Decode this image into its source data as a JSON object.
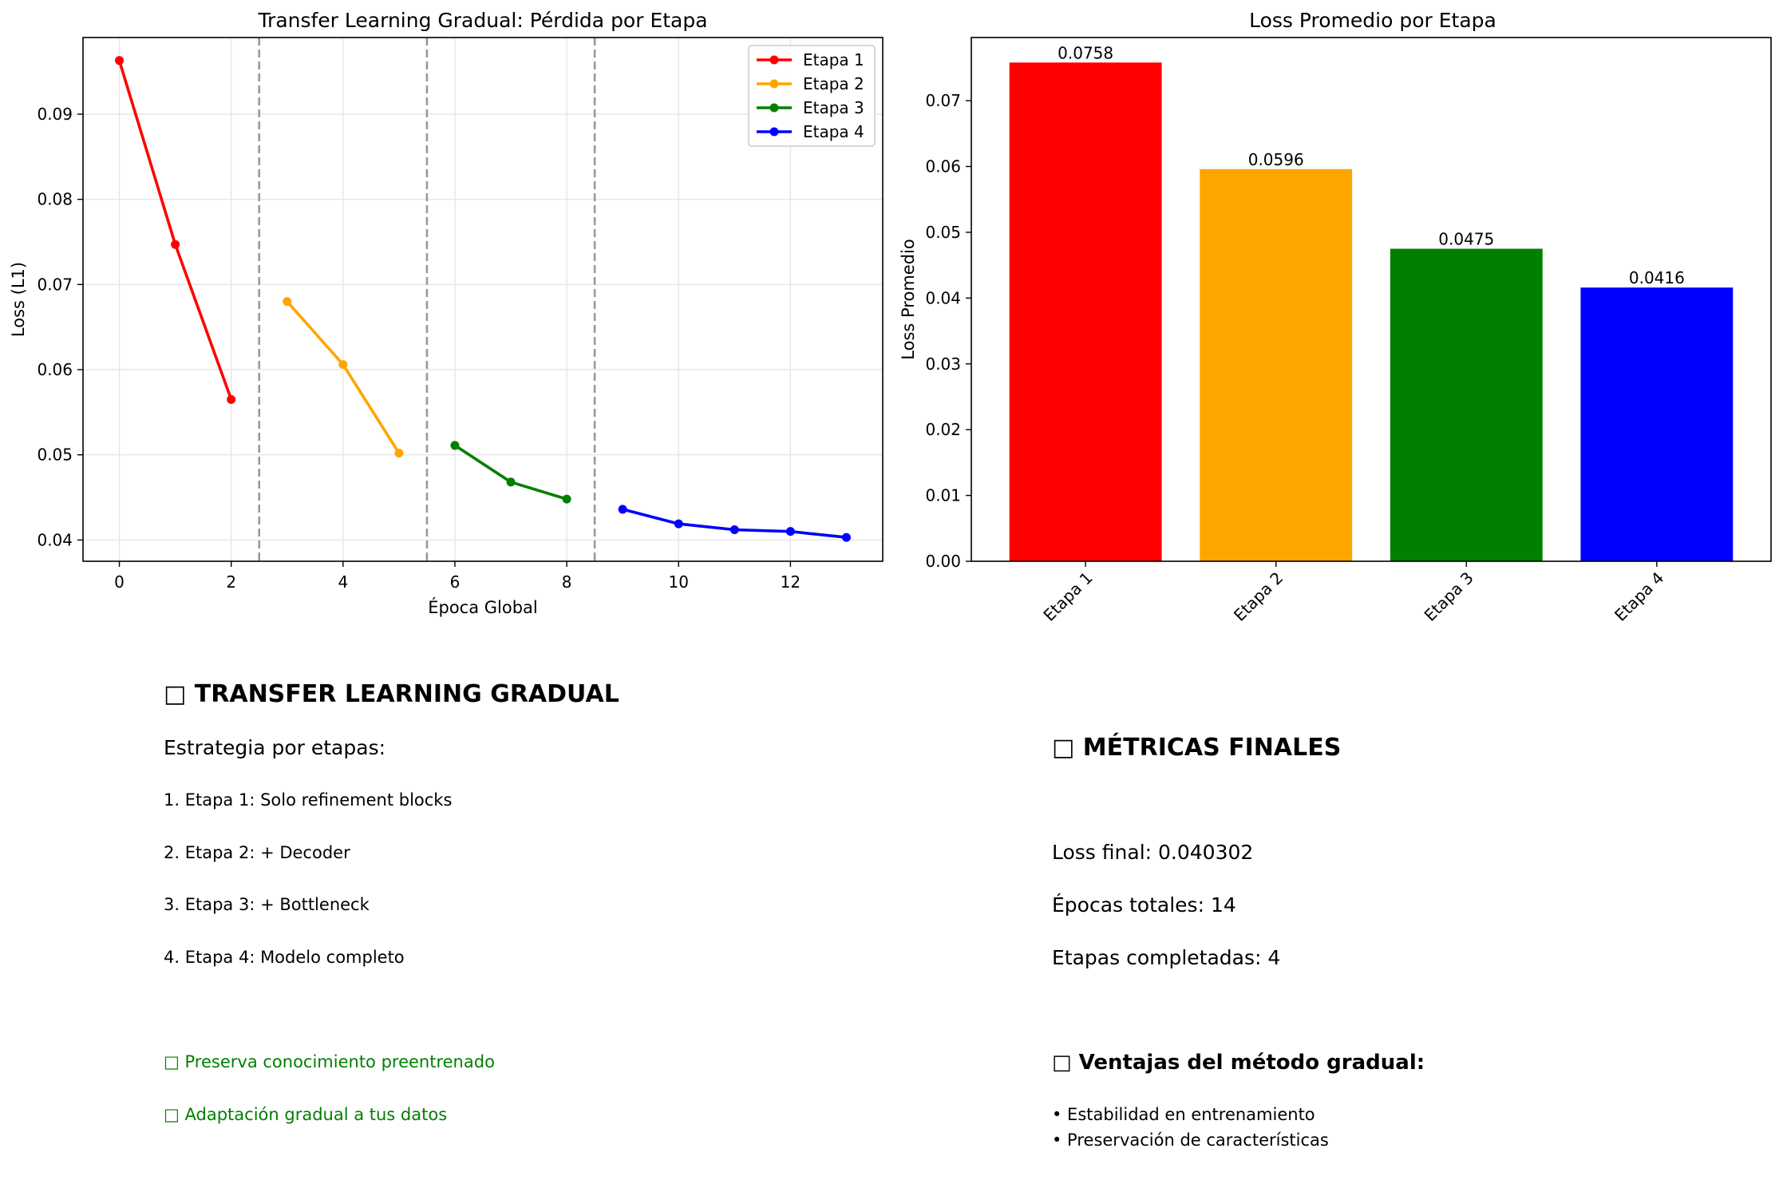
{
  "chart_data": [
    {
      "type": "line",
      "title": "Transfer Learning Gradual: Pérdida por Etapa",
      "xlabel": "Época Global",
      "ylabel": "Loss (L1)",
      "xlim": [
        -0.65,
        13.65
      ],
      "ylim": [
        0.0375,
        0.099
      ],
      "xticks": [
        0,
        2,
        4,
        6,
        8,
        10,
        12
      ],
      "yticks": [
        0.04,
        0.05,
        0.06,
        0.07,
        0.08,
        0.09
      ],
      "ytick_labels": [
        "0.04",
        "0.05",
        "0.06",
        "0.07",
        "0.08",
        "0.09"
      ],
      "grid": true,
      "legend": "top-right",
      "stage_boundaries": [
        2.5,
        5.5,
        8.5
      ],
      "series": [
        {
          "name": "Etapa 1",
          "color": "#ff0000",
          "x": [
            0,
            1,
            2
          ],
          "y": [
            0.0963,
            0.0747,
            0.0565
          ]
        },
        {
          "name": "Etapa 2",
          "color": "#ffa500",
          "x": [
            3,
            4,
            5
          ],
          "y": [
            0.068,
            0.0606,
            0.0502
          ]
        },
        {
          "name": "Etapa 3",
          "color": "#008000",
          "x": [
            6,
            7,
            8
          ],
          "y": [
            0.0511,
            0.0468,
            0.0448
          ]
        },
        {
          "name": "Etapa 4",
          "color": "#0000ff",
          "x": [
            9,
            10,
            11,
            12,
            13
          ],
          "y": [
            0.0436,
            0.0419,
            0.0412,
            0.041,
            0.0403
          ]
        }
      ]
    },
    {
      "type": "bar",
      "title": "Loss Promedio por Etapa",
      "xlabel": "",
      "ylabel": "Loss Promedio",
      "categories": [
        "Etapa 1",
        "Etapa 2",
        "Etapa 3",
        "Etapa 4"
      ],
      "values": [
        0.0758,
        0.0596,
        0.0475,
        0.0416
      ],
      "value_labels": [
        "0.0758",
        "0.0596",
        "0.0475",
        "0.0416"
      ],
      "colors": [
        "#ff0000",
        "#ffa500",
        "#008000",
        "#0000ff"
      ],
      "ylim": [
        0,
        0.0796
      ],
      "yticks": [
        0,
        0.01,
        0.02,
        0.03,
        0.04,
        0.05,
        0.06,
        0.07
      ],
      "ytick_labels": [
        "0.00",
        "0.01",
        "0.02",
        "0.03",
        "0.04",
        "0.05",
        "0.06",
        "0.07"
      ],
      "grid": false
    }
  ],
  "summary": {
    "title": "□ TRANSFER LEARNING GRADUAL",
    "strategy_heading": "Estrategia por etapas:",
    "steps": [
      "1. Etapa 1: Solo refinement blocks",
      "2. Etapa 2: + Decoder",
      "3. Etapa 3: + Bottleneck",
      "4. Etapa 4: Modelo completo"
    ],
    "benefits": [
      "□ Preserva conocimiento preentrenado",
      "□ Adaptación gradual a tus datos"
    ],
    "benefit_color": "#008000"
  },
  "metrics": {
    "title": "□ MÉTRICAS FINALES",
    "loss_final": "Loss final: 0.040302",
    "epochs_total": "Épocas totales: 14",
    "stages_done": "Etapas completadas: 4",
    "advantages_title": "□ Ventajas del método gradual:",
    "advantages": [
      "• Estabilidad en entrenamiento",
      "• Preservación de características"
    ]
  }
}
